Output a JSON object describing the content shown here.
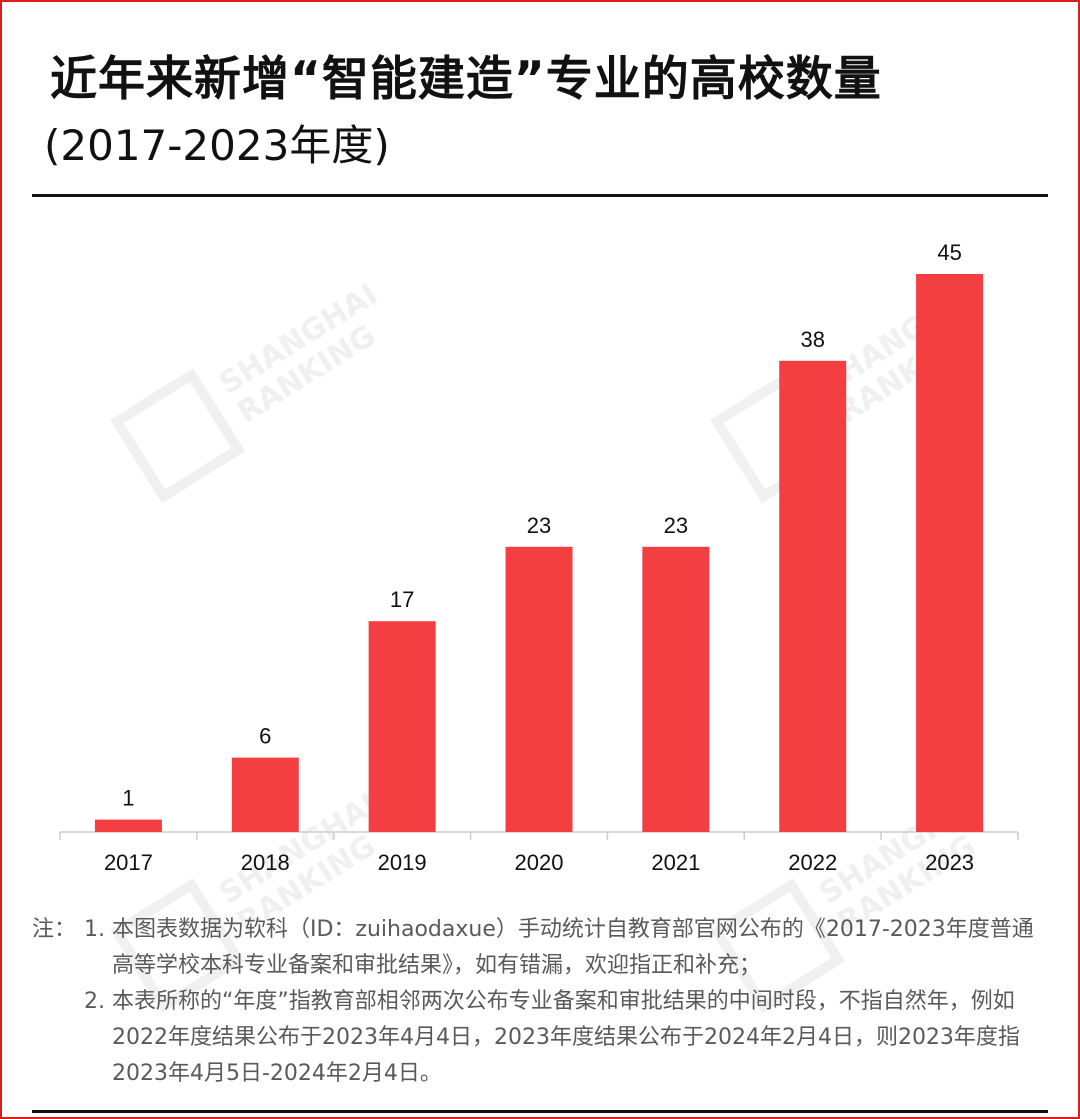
{
  "header": {
    "title": "近年来新增“智能建造”专业的高校数量",
    "subtitle": "(2017-2023年度)"
  },
  "watermark": {
    "line1": "SHANGHAI",
    "line2": "RANKING"
  },
  "colors": {
    "bar": "#f43f42",
    "frame": "#d9201f",
    "axis": "#cccccc",
    "text": "#111111"
  },
  "chart_data": {
    "type": "bar",
    "categories": [
      "2017",
      "2018",
      "2019",
      "2020",
      "2021",
      "2022",
      "2023"
    ],
    "values": [
      1,
      6,
      17,
      23,
      23,
      38,
      45
    ],
    "title": "近年来新增“智能建造”专业的高校数量",
    "subtitle": "(2017-2023年度)",
    "xlabel": "",
    "ylabel": "",
    "ylim": [
      0,
      45
    ],
    "grid": false,
    "data_labels": true
  },
  "notes": {
    "prefix": "注：",
    "items": [
      {
        "num": "1.",
        "text": "本图表数据为软科（ID：zuihaodaxue）手动统计自教育部官网公布的《2017-2023年度普通高等学校本科专业备案和审批结果》，如有错漏，欢迎指正和补充；"
      },
      {
        "num": "2.",
        "text": "本表所称的“年度”指教育部相邻两次公布专业备案和审批结果的中间时段，不指自然年，例如2022年度结果公布于2023年4月4日，2023年度结果公布于2024年2月4日，则2023年度指2023年4月5日-2024年2月4日。"
      }
    ]
  }
}
